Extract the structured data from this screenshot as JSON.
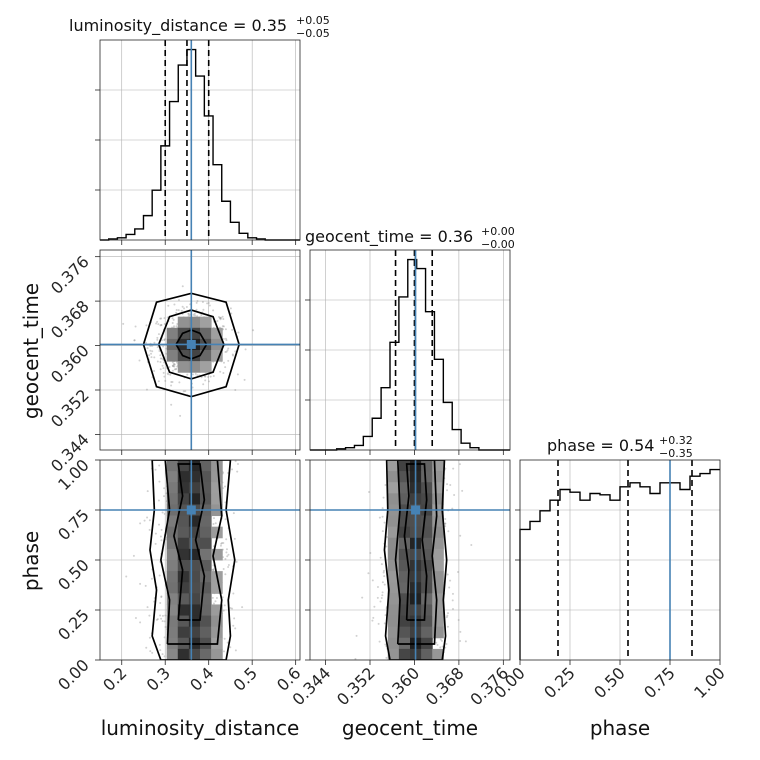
{
  "chart_data": {
    "type": "corner",
    "parameters": [
      "luminosity_distance",
      "geocent_time",
      "phase"
    ],
    "titles": [
      {
        "param": "luminosity_distance",
        "base": "luminosity_distance = 0.35",
        "plus": "+0.05",
        "minus": "−0.05"
      },
      {
        "param": "geocent_time",
        "base": "geocent_time = 0.36",
        "plus": "+0.00",
        "minus": "−0.00"
      },
      {
        "param": "phase",
        "base": "phase = 0.54",
        "plus": "+0.32",
        "minus": "−0.35"
      }
    ],
    "truths": {
      "luminosity_distance": 0.36,
      "geocent_time": 0.3602,
      "phase": 0.75
    },
    "ranges": {
      "luminosity_distance": [
        0.15,
        0.61
      ],
      "geocent_time": [
        0.3412,
        0.3772
      ],
      "phase": [
        0.0,
        1.0
      ]
    },
    "ticks": {
      "luminosity_distance": [
        "0.2",
        "0.3",
        "0.4",
        "0.5",
        "0.6"
      ],
      "geocent_time": [
        "0.344",
        "0.352",
        "0.360",
        "0.368",
        "0.376"
      ],
      "phase": [
        "0.00",
        "0.25",
        "0.50",
        "0.75",
        "1.00"
      ]
    },
    "quantiles": {
      "luminosity_distance": [
        0.3,
        0.35,
        0.4
      ],
      "geocent_time": [
        0.3566,
        0.36,
        0.3632
      ],
      "phase": [
        0.19,
        0.54,
        0.86
      ]
    },
    "histograms": {
      "luminosity_distance": {
        "edges": [
          0.15,
          0.17,
          0.19,
          0.21,
          0.23,
          0.25,
          0.27,
          0.29,
          0.31,
          0.33,
          0.35,
          0.37,
          0.39,
          0.41,
          0.43,
          0.45,
          0.47,
          0.49,
          0.51,
          0.53,
          0.55,
          0.57,
          0.59,
          0.61
        ],
        "counts": [
          0,
          1,
          2,
          5,
          10,
          22,
          45,
          85,
          125,
          158,
          172,
          148,
          112,
          68,
          35,
          16,
          6,
          2,
          1,
          0,
          0,
          0,
          0
        ]
      },
      "geocent_time": {
        "edges": [
          0.3412,
          0.3428,
          0.3444,
          0.346,
          0.3476,
          0.3492,
          0.3508,
          0.3524,
          0.354,
          0.3556,
          0.3572,
          0.3588,
          0.3604,
          0.362,
          0.3636,
          0.3652,
          0.3668,
          0.3684,
          0.37,
          0.3716,
          0.3732,
          0.3748,
          0.3764,
          0.3772
        ],
        "counts": [
          0,
          0,
          0,
          1,
          2,
          4,
          12,
          28,
          55,
          95,
          135,
          168,
          160,
          122,
          80,
          42,
          18,
          6,
          2,
          0,
          0,
          0,
          0
        ]
      },
      "phase": {
        "edges": [
          0.0,
          0.05,
          0.1,
          0.15,
          0.2,
          0.25,
          0.3,
          0.35,
          0.4,
          0.45,
          0.5,
          0.55,
          0.6,
          0.65,
          0.7,
          0.75,
          0.8,
          0.85,
          0.9,
          0.95,
          1.0
        ],
        "counts": [
          98,
          104,
          112,
          120,
          128,
          126,
          120,
          125,
          124,
          120,
          130,
          133,
          130,
          125,
          133,
          133,
          128,
          138,
          140,
          143
        ]
      }
    },
    "contours": {
      "geocent_time_vs_luminosity_distance": {
        "x": "luminosity_distance",
        "y": "geocent_time",
        "levels": [
          {
            "x": [
              0.325,
              0.34,
              0.36,
              0.38,
              0.395,
              0.38,
              0.36,
              0.34,
              0.325
            ],
            "y": [
              0.3602,
              0.3622,
              0.3628,
              0.3622,
              0.3602,
              0.3582,
              0.3576,
              0.3582,
              0.3602
            ]
          },
          {
            "x": [
              0.285,
              0.31,
              0.36,
              0.41,
              0.435,
              0.41,
              0.36,
              0.31,
              0.285
            ],
            "y": [
              0.3602,
              0.3652,
              0.3664,
              0.3652,
              0.3602,
              0.3552,
              0.354,
              0.3552,
              0.3602
            ]
          },
          {
            "x": [
              0.25,
              0.28,
              0.36,
              0.44,
              0.47,
              0.44,
              0.36,
              0.28,
              0.25
            ],
            "y": [
              0.3602,
              0.3678,
              0.3694,
              0.3678,
              0.3602,
              0.3526,
              0.3508,
              0.3526,
              0.3602
            ]
          }
        ]
      },
      "phase_vs_luminosity_distance": {
        "x": "luminosity_distance",
        "y": "phase",
        "levels": [
          {
            "x": [
              0.33,
              0.34,
              0.32,
              0.34,
              0.33,
              0.38,
              0.39,
              0.37,
              0.39,
              0.38,
              0.33
            ],
            "y": [
              0.2,
              0.45,
              0.62,
              0.82,
              0.98,
              0.98,
              0.8,
              0.6,
              0.42,
              0.2,
              0.2
            ]
          },
          {
            "x": [
              0.305,
              0.31,
              0.29,
              0.31,
              0.3,
              0.42,
              0.43,
              0.41,
              0.43,
              0.42,
              0.305
            ],
            "y": [
              0.08,
              0.3,
              0.5,
              0.75,
              1.0,
              1.0,
              0.72,
              0.52,
              0.3,
              0.08,
              0.08
            ]
          },
          {
            "x": [
              0.29,
              0.27,
              0.28,
              0.265,
              0.275,
              0.27,
              0.45,
              0.44,
              0.46,
              0.445,
              0.45,
              0.44,
              0.29
            ],
            "y": [
              0.0,
              0.12,
              0.35,
              0.55,
              0.75,
              1.0,
              1.0,
              0.75,
              0.5,
              0.3,
              0.12,
              0.0,
              0.0
            ]
          }
        ]
      },
      "phase_vs_geocent_time": {
        "x": "geocent_time",
        "y": "phase",
        "levels": [
          {
            "x": [
              0.3586,
              0.359,
              0.3582,
              0.359,
              0.3586,
              0.3618,
              0.3622,
              0.3614,
              0.3622,
              0.3618,
              0.3586
            ],
            "y": [
              0.2,
              0.45,
              0.62,
              0.82,
              0.98,
              0.98,
              0.8,
              0.6,
              0.42,
              0.2,
              0.2
            ]
          },
          {
            "x": [
              0.357,
              0.3574,
              0.3566,
              0.3574,
              0.357,
              0.3636,
              0.364,
              0.3632,
              0.364,
              0.3636,
              0.357
            ],
            "y": [
              0.08,
              0.3,
              0.5,
              0.75,
              1.0,
              1.0,
              0.72,
              0.52,
              0.3,
              0.08,
              0.08
            ]
          },
          {
            "x": [
              0.3556,
              0.3548,
              0.3554,
              0.3546,
              0.3552,
              0.355,
              0.3654,
              0.365,
              0.3658,
              0.3652,
              0.3656,
              0.365,
              0.3556
            ],
            "y": [
              0.0,
              0.12,
              0.35,
              0.55,
              0.75,
              1.0,
              1.0,
              0.75,
              0.5,
              0.3,
              0.12,
              0.0,
              0.0
            ]
          }
        ]
      }
    },
    "colors": {
      "truth": "#4682b4",
      "hist": "#000000",
      "grid": "#b0b0b0"
    }
  }
}
